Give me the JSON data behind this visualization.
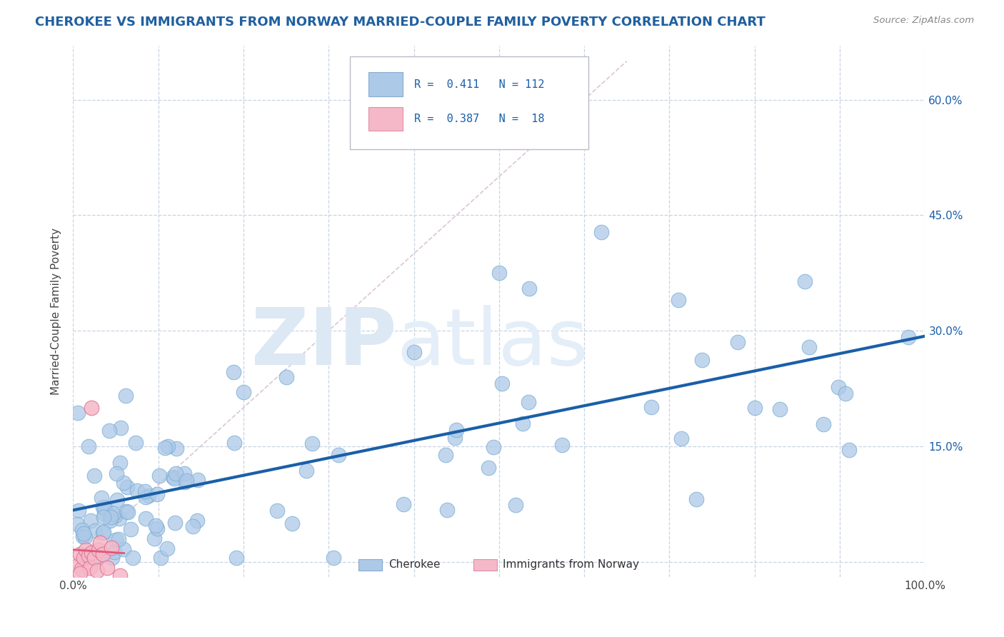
{
  "title": "CHEROKEE VS IMMIGRANTS FROM NORWAY MARRIED-COUPLE FAMILY POVERTY CORRELATION CHART",
  "source": "Source: ZipAtlas.com",
  "ylabel": "Married-Couple Family Poverty",
  "xlim": [
    0,
    1.0
  ],
  "ylim": [
    -0.02,
    0.67
  ],
  "plot_ylim": [
    -0.02,
    0.67
  ],
  "xtick_positions": [
    0.0,
    0.1,
    0.2,
    0.3,
    0.4,
    0.5,
    0.6,
    0.7,
    0.8,
    0.9,
    1.0
  ],
  "xticklabels": [
    "0.0%",
    "",
    "",
    "",
    "",
    "",
    "",
    "",
    "",
    "",
    "100.0%"
  ],
  "ytick_positions": [
    0.0,
    0.15,
    0.3,
    0.45,
    0.6
  ],
  "yticklabels_right": [
    "",
    "15.0%",
    "30.0%",
    "45.0%",
    "60.0%"
  ],
  "r_cherokee": 0.411,
  "n_cherokee": 112,
  "r_norway": 0.387,
  "n_norway": 18,
  "scatter_color_cherokee": "#adc9e8",
  "scatter_edge_cherokee": "#7aaed4",
  "scatter_color_norway": "#f5b8c8",
  "scatter_edge_norway": "#e07090",
  "line_color_cherokee": "#1a5fa8",
  "line_color_norway": "#e05878",
  "diag_line_color": "#d8c0d0",
  "legend_patch_cherokee": "#adc9e8",
  "legend_patch_norway": "#f5b8c8",
  "background_color": "#ffffff",
  "grid_color": "#c8d4e4",
  "title_color": "#2060a0",
  "source_color": "#888888",
  "legend_text_color": "#1a5fa8"
}
